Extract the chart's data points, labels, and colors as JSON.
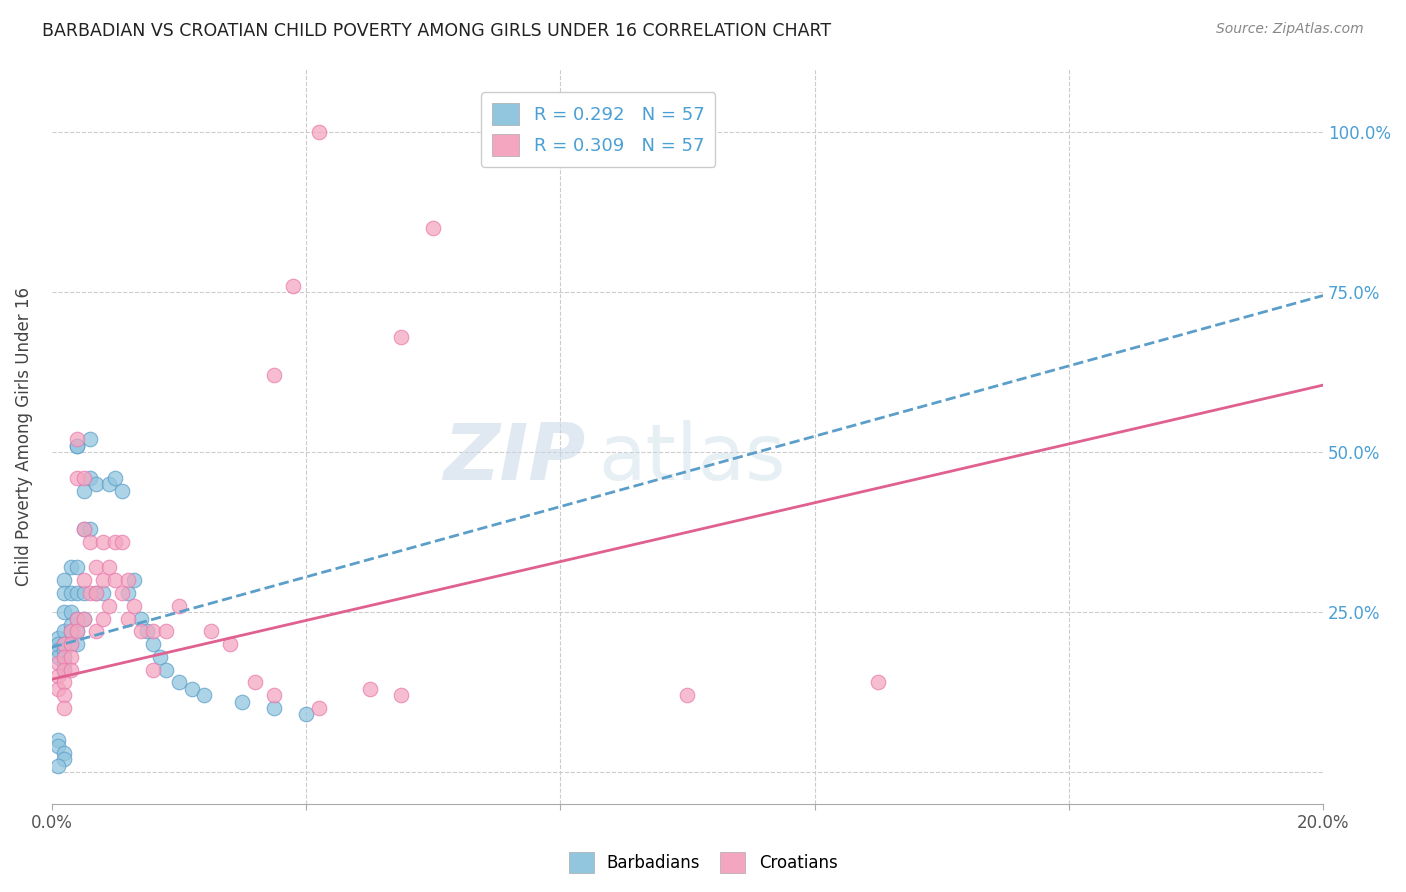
{
  "title": "BARBADIAN VS CROATIAN CHILD POVERTY AMONG GIRLS UNDER 16 CORRELATION CHART",
  "source": "Source: ZipAtlas.com",
  "ylabel": "Child Poverty Among Girls Under 16",
  "xlim": [
    0.0,
    0.2
  ],
  "ylim": [
    -0.05,
    1.1
  ],
  "legend_blue_r": "R = 0.292",
  "legend_blue_n": "N = 57",
  "legend_pink_r": "R = 0.309",
  "legend_pink_n": "N = 57",
  "blue_color": "#92c5de",
  "pink_color": "#f4a6c0",
  "blue_edge_color": "#5b9ec9",
  "pink_edge_color": "#e87bad",
  "blue_line_color": "#5b9ec9",
  "pink_line_color": "#e06090",
  "watermark": "ZIPatlas",
  "blue_line_intercept": 0.195,
  "blue_line_slope": 2.75,
  "pink_line_intercept": 0.145,
  "pink_line_slope": 2.3,
  "blue_scatter": [
    [
      0.001,
      0.21
    ],
    [
      0.001,
      0.2
    ],
    [
      0.001,
      0.19
    ],
    [
      0.001,
      0.18
    ],
    [
      0.002,
      0.3
    ],
    [
      0.002,
      0.28
    ],
    [
      0.002,
      0.25
    ],
    [
      0.002,
      0.22
    ],
    [
      0.002,
      0.2
    ],
    [
      0.002,
      0.19
    ],
    [
      0.002,
      0.18
    ],
    [
      0.002,
      0.17
    ],
    [
      0.002,
      0.16
    ],
    [
      0.003,
      0.32
    ],
    [
      0.003,
      0.28
    ],
    [
      0.003,
      0.25
    ],
    [
      0.003,
      0.23
    ],
    [
      0.003,
      0.22
    ],
    [
      0.003,
      0.2
    ],
    [
      0.004,
      0.51
    ],
    [
      0.004,
      0.51
    ],
    [
      0.004,
      0.32
    ],
    [
      0.004,
      0.28
    ],
    [
      0.004,
      0.24
    ],
    [
      0.004,
      0.22
    ],
    [
      0.004,
      0.2
    ],
    [
      0.005,
      0.44
    ],
    [
      0.005,
      0.38
    ],
    [
      0.005,
      0.28
    ],
    [
      0.005,
      0.24
    ],
    [
      0.006,
      0.52
    ],
    [
      0.006,
      0.46
    ],
    [
      0.006,
      0.38
    ],
    [
      0.007,
      0.45
    ],
    [
      0.007,
      0.28
    ],
    [
      0.008,
      0.28
    ],
    [
      0.009,
      0.45
    ],
    [
      0.01,
      0.46
    ],
    [
      0.011,
      0.44
    ],
    [
      0.012,
      0.28
    ],
    [
      0.013,
      0.3
    ],
    [
      0.014,
      0.24
    ],
    [
      0.015,
      0.22
    ],
    [
      0.016,
      0.2
    ],
    [
      0.017,
      0.18
    ],
    [
      0.018,
      0.16
    ],
    [
      0.02,
      0.14
    ],
    [
      0.022,
      0.13
    ],
    [
      0.024,
      0.12
    ],
    [
      0.03,
      0.11
    ],
    [
      0.035,
      0.1
    ],
    [
      0.04,
      0.09
    ],
    [
      0.001,
      0.05
    ],
    [
      0.001,
      0.04
    ],
    [
      0.002,
      0.03
    ],
    [
      0.002,
      0.02
    ],
    [
      0.001,
      0.01
    ]
  ],
  "pink_scatter": [
    [
      0.001,
      0.17
    ],
    [
      0.001,
      0.15
    ],
    [
      0.001,
      0.13
    ],
    [
      0.002,
      0.2
    ],
    [
      0.002,
      0.18
    ],
    [
      0.002,
      0.16
    ],
    [
      0.002,
      0.14
    ],
    [
      0.002,
      0.12
    ],
    [
      0.002,
      0.1
    ],
    [
      0.003,
      0.22
    ],
    [
      0.003,
      0.2
    ],
    [
      0.003,
      0.18
    ],
    [
      0.003,
      0.16
    ],
    [
      0.004,
      0.52
    ],
    [
      0.004,
      0.46
    ],
    [
      0.004,
      0.24
    ],
    [
      0.004,
      0.22
    ],
    [
      0.005,
      0.46
    ],
    [
      0.005,
      0.38
    ],
    [
      0.005,
      0.3
    ],
    [
      0.005,
      0.24
    ],
    [
      0.006,
      0.36
    ],
    [
      0.006,
      0.28
    ],
    [
      0.007,
      0.32
    ],
    [
      0.007,
      0.28
    ],
    [
      0.007,
      0.22
    ],
    [
      0.008,
      0.36
    ],
    [
      0.008,
      0.3
    ],
    [
      0.008,
      0.24
    ],
    [
      0.009,
      0.32
    ],
    [
      0.009,
      0.26
    ],
    [
      0.01,
      0.36
    ],
    [
      0.01,
      0.3
    ],
    [
      0.011,
      0.36
    ],
    [
      0.011,
      0.28
    ],
    [
      0.012,
      0.3
    ],
    [
      0.012,
      0.24
    ],
    [
      0.013,
      0.26
    ],
    [
      0.014,
      0.22
    ],
    [
      0.016,
      0.22
    ],
    [
      0.016,
      0.16
    ],
    [
      0.018,
      0.22
    ],
    [
      0.02,
      0.26
    ],
    [
      0.025,
      0.22
    ],
    [
      0.028,
      0.2
    ],
    [
      0.032,
      0.14
    ],
    [
      0.035,
      0.12
    ],
    [
      0.042,
      0.1
    ],
    [
      0.05,
      0.13
    ],
    [
      0.055,
      0.12
    ],
    [
      0.06,
      0.85
    ],
    [
      0.055,
      0.68
    ],
    [
      0.042,
      1.0
    ],
    [
      0.038,
      0.76
    ],
    [
      0.035,
      0.62
    ],
    [
      0.13,
      0.14
    ],
    [
      0.1,
      0.12
    ]
  ]
}
